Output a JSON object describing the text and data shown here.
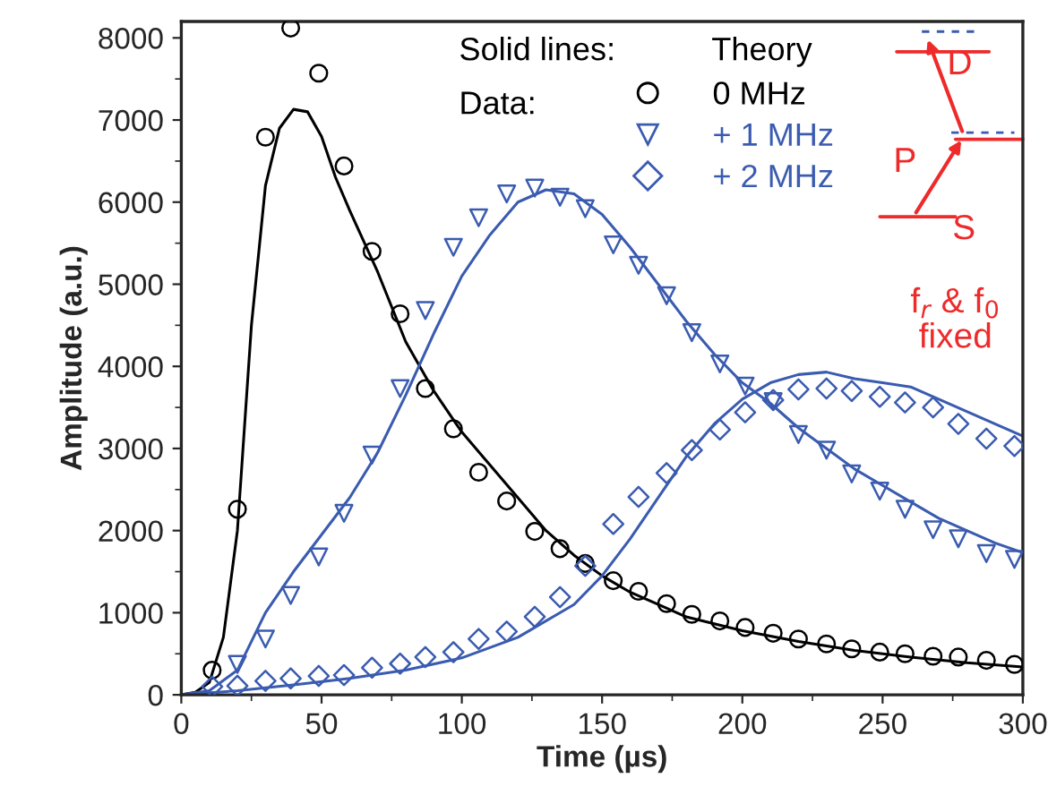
{
  "chart_data": {
    "type": "line",
    "xlabel": "Time (µs)",
    "ylabel": "Amplitude (a.u.)",
    "xlim": [
      0,
      300
    ],
    "xticks": [
      0,
      50,
      100,
      150,
      200,
      250,
      300
    ],
    "ylim": [
      0,
      8200
    ],
    "yticks": [
      0,
      1000,
      2000,
      3000,
      4000,
      5000,
      6000,
      7000,
      8000
    ],
    "grid": false,
    "legend": "top right",
    "series": [
      {
        "marker": "none",
        "color": "#000000",
        "x": [
          0,
          5,
          10,
          15,
          20,
          25,
          30,
          35,
          40,
          45,
          50,
          55,
          60,
          70,
          80,
          90,
          100,
          110,
          120,
          130,
          140,
          150,
          160,
          170,
          180,
          200,
          220,
          240,
          260,
          280,
          300
        ],
        "values": [
          0,
          30,
          150,
          700,
          2000,
          4500,
          6200,
          6900,
          7130,
          7100,
          6800,
          6300,
          5900,
          5150,
          4300,
          3700,
          3200,
          2800,
          2400,
          2000,
          1700,
          1450,
          1250,
          1100,
          950,
          780,
          650,
          540,
          460,
          390,
          340
        ]
      },
      {
        "marker": "none",
        "color": "#3a5bb0",
        "x": [
          0,
          10,
          20,
          30,
          40,
          50,
          60,
          70,
          80,
          90,
          100,
          110,
          120,
          130,
          140,
          150,
          160,
          170,
          180,
          190,
          200,
          210,
          220,
          230,
          240,
          250,
          260,
          270,
          280,
          290,
          300
        ],
        "values": [
          0,
          50,
          300,
          1000,
          1500,
          1950,
          2400,
          2950,
          3650,
          4400,
          5100,
          5600,
          6000,
          6150,
          6100,
          5850,
          5450,
          5000,
          4550,
          4150,
          3800,
          3550,
          3250,
          3000,
          2750,
          2550,
          2350,
          2150,
          2000,
          1850,
          1730
        ]
      },
      {
        "marker": "none",
        "color": "#3a5bb0",
        "x": [
          0,
          20,
          40,
          60,
          80,
          100,
          120,
          140,
          150,
          160,
          170,
          180,
          190,
          200,
          210,
          220,
          230,
          240,
          250,
          260,
          270,
          280,
          290,
          300
        ],
        "values": [
          0,
          50,
          120,
          200,
          300,
          450,
          700,
          1100,
          1450,
          1900,
          2400,
          2900,
          3300,
          3600,
          3800,
          3900,
          3930,
          3850,
          3800,
          3750,
          3600,
          3450,
          3300,
          3150
        ]
      },
      {
        "name": "0 MHz",
        "type": "scatter",
        "marker": "circle",
        "color": "#000000",
        "x": [
          11,
          20,
          30,
          39,
          49,
          58,
          68,
          78,
          87,
          97,
          106,
          116,
          126,
          135,
          144,
          154,
          163,
          173,
          182,
          192,
          201,
          211,
          220,
          230,
          239,
          249,
          258,
          268,
          277,
          287,
          297
        ],
        "values": [
          300,
          2260,
          6790,
          8120,
          7570,
          6440,
          5400,
          4640,
          3730,
          3240,
          2710,
          2360,
          1990,
          1780,
          1600,
          1390,
          1260,
          1110,
          980,
          900,
          820,
          750,
          680,
          620,
          560,
          520,
          500,
          470,
          460,
          420,
          370
        ]
      },
      {
        "name": "+ 1 MHz",
        "type": "scatter",
        "marker": "triangle",
        "color": "#3a5bb0",
        "x": [
          20,
          30,
          39,
          49,
          58,
          68,
          78,
          87,
          97,
          106,
          116,
          126,
          135,
          144,
          154,
          163,
          173,
          182,
          192,
          201,
          211,
          220,
          230,
          239,
          249,
          258,
          268,
          277,
          287,
          297
        ],
        "values": [
          370,
          680,
          1210,
          1680,
          2210,
          2920,
          3730,
          4680,
          5450,
          5810,
          6100,
          6170,
          6060,
          5920,
          5480,
          5230,
          4860,
          4410,
          4030,
          3760,
          3570,
          3170,
          2980,
          2690,
          2480,
          2260,
          2010,
          1900,
          1720,
          1650
        ]
      },
      {
        "name": "+ 2 MHz",
        "type": "scatter",
        "marker": "diamond",
        "color": "#3a5bb0",
        "x": [
          11,
          20,
          30,
          39,
          49,
          58,
          68,
          78,
          87,
          97,
          106,
          116,
          126,
          135,
          144,
          154,
          163,
          173,
          182,
          192,
          201,
          211,
          220,
          230,
          239,
          249,
          258,
          268,
          277,
          287,
          297
        ],
        "values": [
          100,
          110,
          170,
          200,
          230,
          240,
          330,
          380,
          460,
          520,
          680,
          770,
          950,
          1190,
          1570,
          2080,
          2410,
          2700,
          2980,
          3230,
          3440,
          3590,
          3720,
          3730,
          3700,
          3630,
          3560,
          3500,
          3300,
          3120,
          3030
        ]
      }
    ],
    "annotations": [
      "Solid lines:",
      "Data:",
      "Theory",
      "D",
      "P",
      "S",
      "f$_{r}$ & f$_{0}$\nfixed"
    ]
  }
}
